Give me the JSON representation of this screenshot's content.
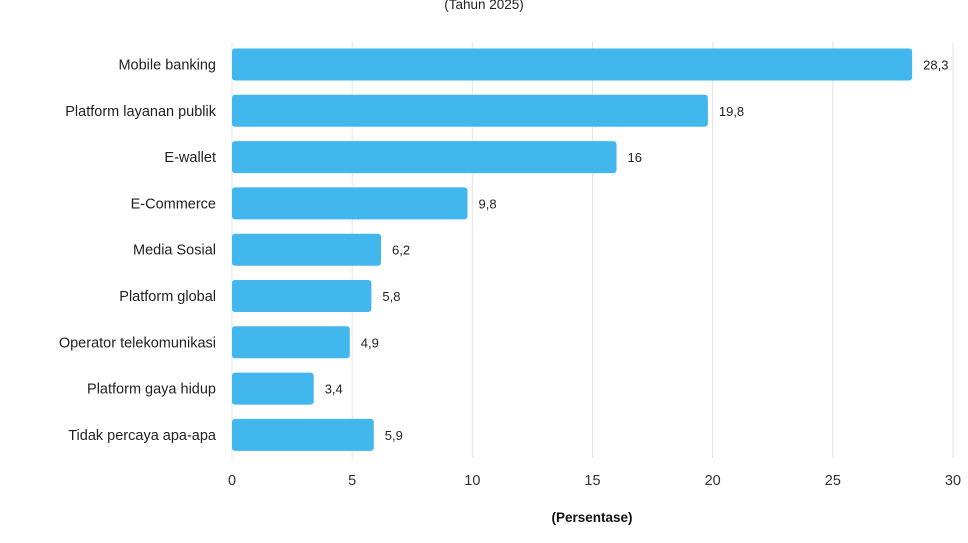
{
  "chart_data": {
    "type": "bar",
    "orientation": "horizontal",
    "subtitle": "(Tahun 2025)",
    "categories": [
      "Mobile banking",
      "Platform layanan publik",
      "E-wallet",
      "E-Commerce",
      "Media Sosial",
      "Platform global",
      "Operator telekomunikasi",
      "Platform gaya hidup",
      "Tidak percaya apa-apa"
    ],
    "values": [
      28.3,
      19.8,
      16,
      9.8,
      6.2,
      5.8,
      4.9,
      3.4,
      5.9
    ],
    "value_labels": [
      "28,3",
      "19,8",
      "16",
      "9,8",
      "6,2",
      "5,8",
      "4,9",
      "3,4",
      "5,9"
    ],
    "xlabel": "(Persentase)",
    "ylabel": "",
    "xlim": [
      0,
      30
    ],
    "xticks": [
      0,
      5,
      10,
      15,
      20,
      25,
      30
    ],
    "grid": "vertical",
    "legend": "none",
    "bar_color": "#42b7ee"
  }
}
